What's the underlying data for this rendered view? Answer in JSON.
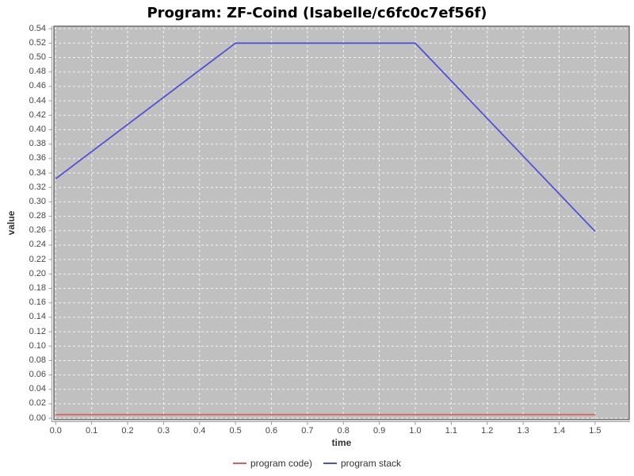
{
  "chart_data": {
    "type": "line",
    "title": "Program: ZF-Coind (Isabelle/c6fc0c7ef56f)",
    "xlabel": "time",
    "ylabel": "value",
    "xlim": [
      -0.005,
      1.595
    ],
    "ylim": [
      -0.002,
      0.5435
    ],
    "x_ticks": [
      "0.0",
      "0.1",
      "0.2",
      "0.3",
      "0.4",
      "0.5",
      "0.6",
      "0.7",
      "0.8",
      "0.9",
      "1.0",
      "1.1",
      "1.2",
      "1.3",
      "1.4",
      "1.5"
    ],
    "y_ticks": [
      "0.00",
      "0.02",
      "0.04",
      "0.06",
      "0.08",
      "0.10",
      "0.12",
      "0.14",
      "0.16",
      "0.18",
      "0.20",
      "0.22",
      "0.24",
      "0.26",
      "0.28",
      "0.30",
      "0.32",
      "0.34",
      "0.36",
      "0.38",
      "0.40",
      "0.42",
      "0.44",
      "0.46",
      "0.48",
      "0.50",
      "0.52",
      "0.54"
    ],
    "grid": true,
    "legend_position": "bottom",
    "series": [
      {
        "name": "program code)",
        "color": "#e05c5c",
        "x": [
          0.0,
          1.5
        ],
        "y": [
          0.005,
          0.005
        ]
      },
      {
        "name": "program stack",
        "color": "#4c4cda",
        "x": [
          0.0,
          0.5,
          1.0,
          1.5
        ],
        "y": [
          0.332,
          0.52,
          0.52,
          0.259
        ]
      }
    ],
    "colors": {
      "plot_bg": "#c0c0c0",
      "grid": "#ffffff",
      "border": "#555555",
      "axis": "#999999",
      "tick_label": "#474747",
      "title": "#000000"
    }
  }
}
